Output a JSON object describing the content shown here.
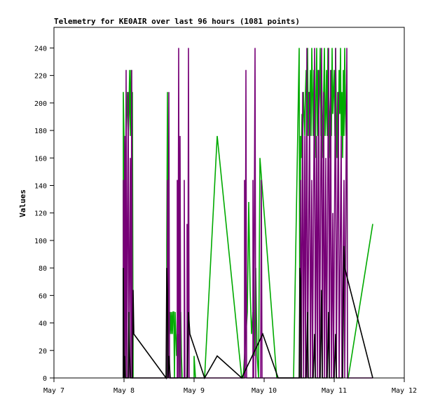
{
  "chart_data": {
    "type": "line",
    "title": "Telemetry for KE0AIR over last 96 hours (1081 points)",
    "xlabel": "",
    "ylabel": "Values",
    "grid": false,
    "legend": "none",
    "xlim": [
      0,
      5
    ],
    "ylim": [
      0,
      255
    ],
    "x_ticks": [
      {
        "label": "May 7",
        "value": 0
      },
      {
        "label": "May 8",
        "value": 1
      },
      {
        "label": "May 9",
        "value": 2
      },
      {
        "label": "May 10",
        "value": 3
      },
      {
        "label": "May 11",
        "value": 4
      },
      {
        "label": "May 12",
        "value": 5
      }
    ],
    "y_ticks": [
      0,
      20,
      40,
      60,
      80,
      100,
      120,
      140,
      160,
      180,
      200,
      220,
      240
    ],
    "x_units": "days after May 7 00:00",
    "series": [
      {
        "color": "#00aa00",
        "points": [
          [
            0.99,
            0
          ],
          [
            0.99,
            208
          ],
          [
            1.0,
            176
          ],
          [
            1.01,
            0
          ],
          [
            1.02,
            160
          ],
          [
            1.03,
            176
          ],
          [
            1.04,
            192
          ],
          [
            1.05,
            208
          ],
          [
            1.06,
            176
          ],
          [
            1.07,
            192
          ],
          [
            1.08,
            224
          ],
          [
            1.09,
            176
          ],
          [
            1.1,
            224
          ],
          [
            1.11,
            192
          ],
          [
            1.12,
            208
          ],
          [
            1.13,
            0
          ],
          [
            1.61,
            0
          ],
          [
            1.61,
            96
          ],
          [
            1.62,
            208
          ],
          [
            1.63,
            48
          ],
          [
            1.64,
            48
          ],
          [
            1.65,
            32
          ],
          [
            1.66,
            48
          ],
          [
            1.67,
            32
          ],
          [
            1.68,
            48
          ],
          [
            1.69,
            32
          ],
          [
            1.7,
            48
          ],
          [
            1.71,
            48
          ],
          [
            1.72,
            0
          ],
          [
            1.73,
            48
          ],
          [
            1.74,
            32
          ],
          [
            1.75,
            16
          ],
          [
            1.76,
            32
          ],
          [
            1.77,
            16
          ],
          [
            1.78,
            32
          ],
          [
            1.79,
            0
          ],
          [
            1.8,
            32
          ],
          [
            1.81,
            48
          ],
          [
            1.82,
            16
          ],
          [
            1.83,
            0
          ],
          [
            2.0,
            0
          ],
          [
            2.0,
            16
          ],
          [
            2.02,
            0
          ],
          [
            2.15,
            0
          ],
          [
            2.33,
            176
          ],
          [
            2.68,
            0
          ],
          [
            2.7,
            0
          ],
          [
            2.72,
            16
          ],
          [
            2.74,
            32
          ],
          [
            2.76,
            48
          ],
          [
            2.78,
            128
          ],
          [
            2.8,
            64
          ],
          [
            2.82,
            32
          ],
          [
            2.84,
            48
          ],
          [
            2.86,
            16
          ],
          [
            2.88,
            80
          ],
          [
            2.9,
            16
          ],
          [
            2.92,
            0
          ],
          [
            2.94,
            160
          ],
          [
            3.18,
            0
          ],
          [
            3.2,
            0
          ],
          [
            3.42,
            0
          ],
          [
            3.5,
            240
          ],
          [
            3.51,
            0
          ],
          [
            3.52,
            176
          ],
          [
            3.53,
            160
          ],
          [
            3.54,
            192
          ],
          [
            3.55,
            176
          ],
          [
            3.56,
            208
          ],
          [
            3.57,
            192
          ],
          [
            3.58,
            176
          ],
          [
            3.59,
            208
          ],
          [
            3.6,
            224
          ],
          [
            3.61,
            192
          ],
          [
            3.62,
            240
          ],
          [
            3.63,
            176
          ],
          [
            3.64,
            208
          ],
          [
            3.65,
            192
          ],
          [
            3.66,
            224
          ],
          [
            3.67,
            176
          ],
          [
            3.68,
            240
          ],
          [
            3.69,
            208
          ],
          [
            3.7,
            176
          ],
          [
            3.71,
            224
          ],
          [
            3.72,
            192
          ],
          [
            3.73,
            160
          ],
          [
            3.74,
            208
          ],
          [
            3.75,
            240
          ],
          [
            3.76,
            176
          ],
          [
            3.77,
            224
          ],
          [
            3.78,
            192
          ],
          [
            3.79,
            208
          ],
          [
            3.8,
            240
          ],
          [
            3.81,
            176
          ],
          [
            3.82,
            224
          ],
          [
            3.83,
            192
          ],
          [
            3.84,
            160
          ],
          [
            3.85,
            208
          ],
          [
            3.86,
            240
          ],
          [
            3.87,
            176
          ],
          [
            3.88,
            192
          ],
          [
            3.89,
            224
          ],
          [
            3.9,
            176
          ],
          [
            3.91,
            240
          ],
          [
            3.92,
            208
          ],
          [
            3.93,
            192
          ],
          [
            3.94,
            160
          ],
          [
            3.95,
            224
          ],
          [
            3.96,
            176
          ],
          [
            3.97,
            240
          ],
          [
            3.98,
            192
          ],
          [
            3.99,
            208
          ],
          [
            4.0,
            224
          ],
          [
            4.01,
            176
          ],
          [
            4.02,
            240
          ],
          [
            4.03,
            192
          ],
          [
            4.04,
            160
          ],
          [
            4.05,
            208
          ],
          [
            4.06,
            176
          ],
          [
            4.07,
            224
          ],
          [
            4.08,
            192
          ],
          [
            4.09,
            240
          ],
          [
            4.1,
            176
          ],
          [
            4.11,
            208
          ],
          [
            4.12,
            160
          ],
          [
            4.13,
            224
          ],
          [
            4.14,
            176
          ],
          [
            4.15,
            240
          ],
          [
            4.16,
            192
          ],
          [
            4.17,
            176
          ],
          [
            4.18,
            224
          ],
          [
            4.19,
            0
          ],
          [
            4.2,
            0
          ],
          [
            4.55,
            112
          ]
        ]
      },
      {
        "color": "#770077",
        "points": [
          [
            0.99,
            0
          ],
          [
            0.99,
            144
          ],
          [
            1.0,
            0
          ],
          [
            1.01,
            176
          ],
          [
            1.02,
            0
          ],
          [
            1.03,
            224
          ],
          [
            1.04,
            0
          ],
          [
            1.06,
            208
          ],
          [
            1.07,
            0
          ],
          [
            1.09,
            160
          ],
          [
            1.1,
            0
          ],
          [
            1.11,
            224
          ],
          [
            1.12,
            0
          ],
          [
            1.13,
            0
          ],
          [
            1.62,
            0
          ],
          [
            1.62,
            144
          ],
          [
            1.63,
            0
          ],
          [
            1.64,
            208
          ],
          [
            1.65,
            0
          ],
          [
            1.76,
            0
          ],
          [
            1.76,
            144
          ],
          [
            1.77,
            0
          ],
          [
            1.78,
            240
          ],
          [
            1.79,
            0
          ],
          [
            1.8,
            176
          ],
          [
            1.81,
            0
          ],
          [
            1.86,
            0
          ],
          [
            1.86,
            144
          ],
          [
            1.87,
            0
          ],
          [
            1.9,
            0
          ],
          [
            1.9,
            112
          ],
          [
            1.91,
            0
          ],
          [
            1.92,
            240
          ],
          [
            1.93,
            0
          ],
          [
            2.72,
            0
          ],
          [
            2.72,
            144
          ],
          [
            2.73,
            0
          ],
          [
            2.74,
            224
          ],
          [
            2.75,
            0
          ],
          [
            2.84,
            0
          ],
          [
            2.84,
            144
          ],
          [
            2.85,
            0
          ],
          [
            2.87,
            240
          ],
          [
            2.88,
            0
          ],
          [
            2.9,
            0
          ],
          [
            2.95,
            0
          ],
          [
            2.96,
            144
          ],
          [
            2.97,
            0
          ],
          [
            3.52,
            0
          ],
          [
            3.52,
            144
          ],
          [
            3.53,
            0
          ],
          [
            3.55,
            208
          ],
          [
            3.56,
            0
          ],
          [
            3.58,
            176
          ],
          [
            3.59,
            0
          ],
          [
            3.61,
            240
          ],
          [
            3.62,
            0
          ],
          [
            3.65,
            208
          ],
          [
            3.66,
            0
          ],
          [
            3.68,
            144
          ],
          [
            3.69,
            0
          ],
          [
            3.72,
            240
          ],
          [
            3.73,
            0
          ],
          [
            3.75,
            176
          ],
          [
            3.76,
            0
          ],
          [
            3.78,
            224
          ],
          [
            3.79,
            0
          ],
          [
            3.82,
            240
          ],
          [
            3.83,
            0
          ],
          [
            3.85,
            208
          ],
          [
            3.86,
            0
          ],
          [
            3.88,
            160
          ],
          [
            3.89,
            0
          ],
          [
            3.92,
            240
          ],
          [
            3.93,
            0
          ],
          [
            3.95,
            224
          ],
          [
            3.96,
            0
          ],
          [
            3.98,
            120
          ],
          [
            3.99,
            0
          ],
          [
            4.02,
            240
          ],
          [
            4.03,
            0
          ],
          [
            4.06,
            208
          ],
          [
            4.07,
            0
          ],
          [
            4.1,
            176
          ],
          [
            4.11,
            0
          ],
          [
            4.14,
            144
          ],
          [
            4.15,
            0
          ],
          [
            4.18,
            240
          ],
          [
            4.19,
            0
          ],
          [
            4.55,
            0
          ]
        ]
      },
      {
        "color": "#000000",
        "points": [
          [
            0.99,
            0
          ],
          [
            0.99,
            80
          ],
          [
            1.0,
            0
          ],
          [
            1.01,
            16
          ],
          [
            1.02,
            0
          ],
          [
            1.06,
            0
          ],
          [
            1.07,
            48
          ],
          [
            1.08,
            16
          ],
          [
            1.09,
            0
          ],
          [
            1.12,
            0
          ],
          [
            1.13,
            64
          ],
          [
            1.14,
            32
          ],
          [
            1.6,
            0
          ],
          [
            1.61,
            80
          ],
          [
            1.62,
            64
          ],
          [
            1.63,
            0
          ],
          [
            1.64,
            16
          ],
          [
            1.66,
            0
          ],
          [
            1.9,
            0
          ],
          [
            1.92,
            48
          ],
          [
            1.94,
            32
          ],
          [
            2.15,
            0
          ],
          [
            2.33,
            16
          ],
          [
            2.68,
            0
          ],
          [
            2.98,
            32
          ],
          [
            3.2,
            0
          ],
          [
            3.42,
            0
          ],
          [
            3.5,
            0
          ],
          [
            3.51,
            80
          ],
          [
            3.52,
            72
          ],
          [
            3.53,
            0
          ],
          [
            3.6,
            0
          ],
          [
            3.62,
            48
          ],
          [
            3.63,
            0
          ],
          [
            3.7,
            0
          ],
          [
            3.72,
            32
          ],
          [
            3.73,
            0
          ],
          [
            3.8,
            0
          ],
          [
            3.82,
            64
          ],
          [
            3.83,
            0
          ],
          [
            3.9,
            0
          ],
          [
            3.92,
            48
          ],
          [
            3.93,
            0
          ],
          [
            4.0,
            0
          ],
          [
            4.02,
            32
          ],
          [
            4.03,
            0
          ],
          [
            4.12,
            0
          ],
          [
            4.14,
            96
          ],
          [
            4.15,
            80
          ],
          [
            4.55,
            0
          ]
        ]
      }
    ]
  }
}
